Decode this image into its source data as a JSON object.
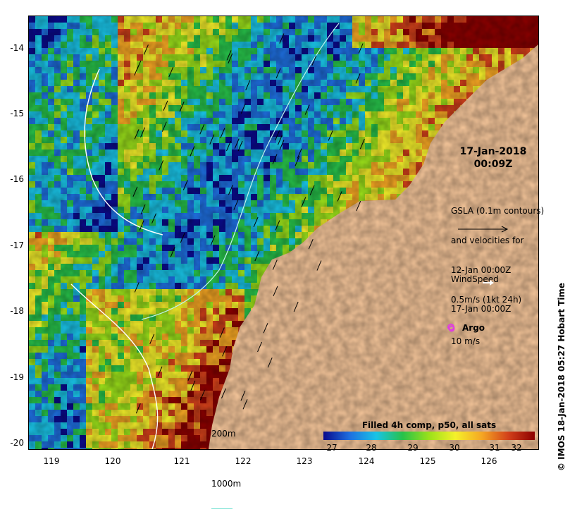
{
  "map": {
    "lat_ticks": [
      "-14",
      "-15",
      "-16",
      "-17",
      "-18",
      "-19",
      "-20"
    ],
    "lon_ticks": [
      "119",
      "120",
      "121",
      "122",
      "123",
      "124",
      "125",
      "126"
    ],
    "land_color": "#f7c79b"
  },
  "timestamp": {
    "date": "17-Jan-2018",
    "time": "00:09Z"
  },
  "gsla_legend": {
    "line1": "GSLA (0.1m contours)",
    "line2": "and velocities for",
    "line3": "12-Jan 00:00Z",
    "line4": "0.5m/s (1kt 24h)"
  },
  "wind_legend": {
    "line1": "WindSpeed",
    "line2": "17-Jan 00:00Z",
    "line3": "10 m/s"
  },
  "argo_legend": {
    "label": "Argo",
    "color": "#e03fe0"
  },
  "depth_legend": {
    "contour1": "200m",
    "contour2": "1000m",
    "contour2_color": "#6fe0d0"
  },
  "colorbar": {
    "title": "Filled 4h comp, p50, all sats",
    "labels": [
      "27",
      "28",
      "29",
      "30",
      "31",
      "32"
    ],
    "colors": [
      "#0a0a8c",
      "#1e6fe0",
      "#19c3e6",
      "#27c24a",
      "#9be11a",
      "#f5f02a",
      "#f5a623",
      "#d2401a",
      "#8c0000"
    ]
  },
  "credit": "© IMOS 18-Jan-2018 05:27 Hobart Time"
}
